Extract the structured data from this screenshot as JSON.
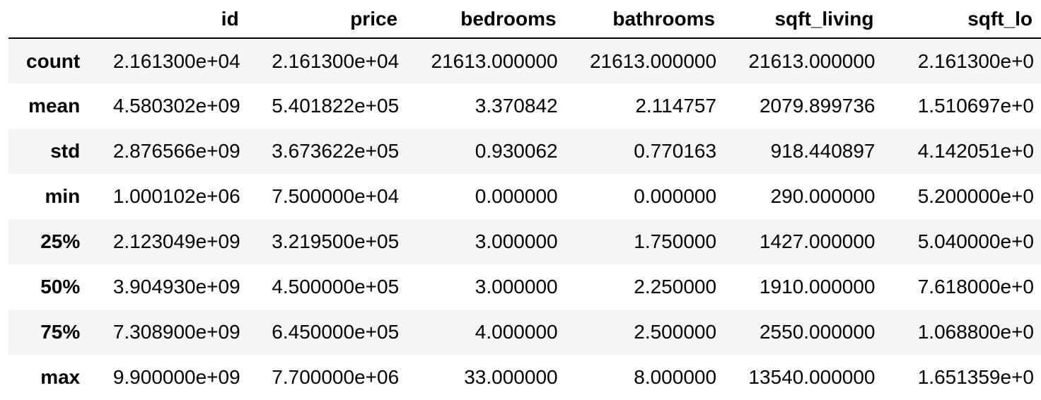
{
  "table": {
    "columns": [
      "id",
      "price",
      "bedrooms",
      "bathrooms",
      "sqft_living",
      "sqft_lo"
    ],
    "rows": [
      {
        "label": "count",
        "values": [
          "2.161300e+04",
          "2.161300e+04",
          "21613.000000",
          "21613.000000",
          "21613.000000",
          "2.161300e+0"
        ]
      },
      {
        "label": "mean",
        "values": [
          "4.580302e+09",
          "5.401822e+05",
          "3.370842",
          "2.114757",
          "2079.899736",
          "1.510697e+0"
        ]
      },
      {
        "label": "std",
        "values": [
          "2.876566e+09",
          "3.673622e+05",
          "0.930062",
          "0.770163",
          "918.440897",
          "4.142051e+0"
        ]
      },
      {
        "label": "min",
        "values": [
          "1.000102e+06",
          "7.500000e+04",
          "0.000000",
          "0.000000",
          "290.000000",
          "5.200000e+0"
        ]
      },
      {
        "label": "25%",
        "values": [
          "2.123049e+09",
          "3.219500e+05",
          "3.000000",
          "1.750000",
          "1427.000000",
          "5.040000e+0"
        ]
      },
      {
        "label": "50%",
        "values": [
          "3.904930e+09",
          "4.500000e+05",
          "3.000000",
          "2.250000",
          "1910.000000",
          "7.618000e+0"
        ]
      },
      {
        "label": "75%",
        "values": [
          "7.308900e+09",
          "6.450000e+05",
          "4.000000",
          "2.500000",
          "2550.000000",
          "1.068800e+0"
        ]
      },
      {
        "label": "max",
        "values": [
          "9.900000e+09",
          "7.700000e+06",
          "33.000000",
          "8.000000",
          "13540.000000",
          "1.651359e+0"
        ]
      }
    ]
  },
  "colors": {
    "stripe": "#f5f5f5",
    "header_rule": "#000000",
    "text": "#000000"
  }
}
